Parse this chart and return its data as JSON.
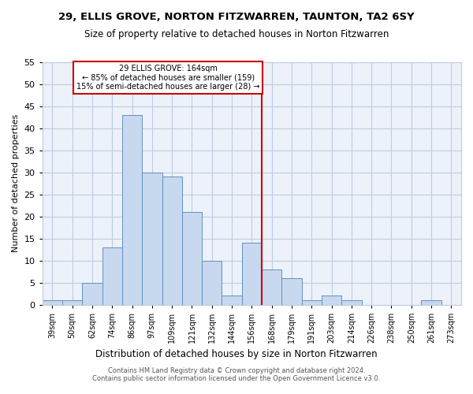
{
  "title": "29, ELLIS GROVE, NORTON FITZWARREN, TAUNTON, TA2 6SY",
  "subtitle": "Size of property relative to detached houses in Norton Fitzwarren",
  "xlabel": "Distribution of detached houses by size in Norton Fitzwarren",
  "ylabel": "Number of detached properties",
  "categories": [
    "39sqm",
    "50sqm",
    "62sqm",
    "74sqm",
    "86sqm",
    "97sqm",
    "109sqm",
    "121sqm",
    "132sqm",
    "144sqm",
    "156sqm",
    "168sqm",
    "179sqm",
    "191sqm",
    "203sqm",
    "214sqm",
    "226sqm",
    "238sqm",
    "250sqm",
    "261sqm",
    "273sqm"
  ],
  "values": [
    1,
    1,
    5,
    13,
    43,
    30,
    29,
    21,
    10,
    2,
    14,
    8,
    6,
    1,
    2,
    1,
    0,
    0,
    0,
    1,
    0
  ],
  "bar_color": "#c8d8ee",
  "bar_edge_color": "#6090c0",
  "property_line_x": 10.5,
  "property_line_label": "29 ELLIS GROVE: 164sqm",
  "property_line_sublabel1": "← 85% of detached houses are smaller (159)",
  "property_line_sublabel2": "15% of semi-detached houses are larger (28) →",
  "vline_color": "#cc0000",
  "annotation_box_color": "#cc0000",
  "ylim": [
    0,
    55
  ],
  "yticks": [
    0,
    5,
    10,
    15,
    20,
    25,
    30,
    35,
    40,
    45,
    50,
    55
  ],
  "footer1": "Contains HM Land Registry data © Crown copyright and database right 2024.",
  "footer2": "Contains public sector information licensed under the Open Government Licence v3.0.",
  "bg_color": "#edf2fa",
  "grid_color": "#c0cce0"
}
